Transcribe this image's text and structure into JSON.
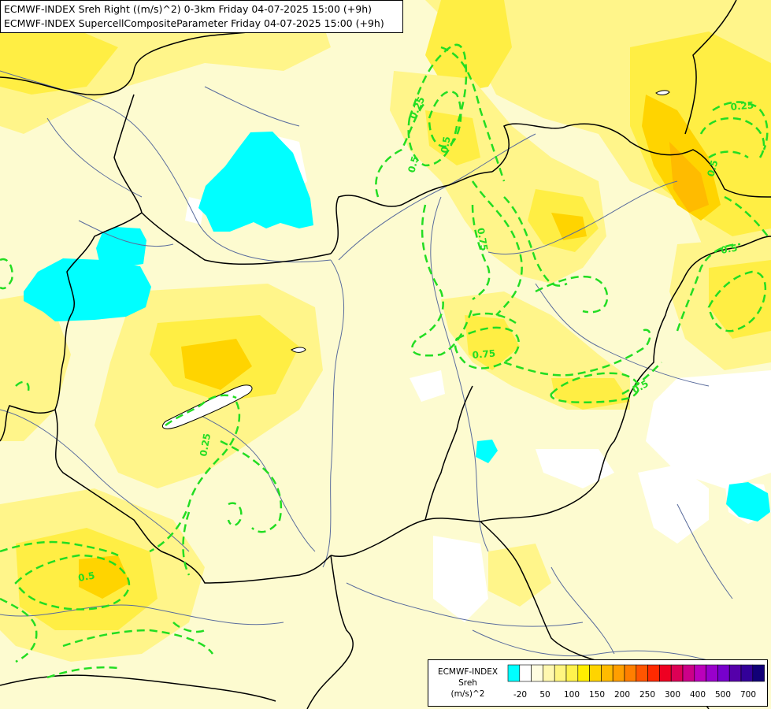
{
  "title_lines": [
    "ECMWF-INDEX Sreh Right ((m/s)^2) 0-3km Friday 04-07-2025 15:00 (+9h)",
    "ECMWF-INDEX SupercellCompositeParameter Friday 04-07-2025 15:00 (+9h)"
  ],
  "legend": {
    "model": "ECMWF-INDEX",
    "param": "Sreh",
    "unit": "(m/s)^2",
    "colors": [
      "#00ffff",
      "#ffffff",
      "#fffde0",
      "#fff8b0",
      "#fff580",
      "#fff24d",
      "#ffee00",
      "#ffd400",
      "#ffbb00",
      "#ff9f00",
      "#ff7f00",
      "#ff5500",
      "#ff2a00",
      "#ee0022",
      "#dd0055",
      "#cc0088",
      "#bb00bb",
      "#9900cc",
      "#7700cc",
      "#5500aa",
      "#330099",
      "#110077"
    ],
    "tick_labels": [
      "-20",
      "50",
      "100",
      "150",
      "200",
      "250",
      "300",
      "400",
      "500",
      "700"
    ]
  },
  "contour_labels": [
    "0.25",
    "0.5",
    "0.5",
    "0.75",
    "0.75",
    "0.25",
    "0.5",
    "0.5",
    "0.25",
    "0.5",
    "0.5"
  ],
  "map_colors": {
    "background": "#fdfbd0",
    "yellow_light": "#fff58a",
    "yellow_mid": "#ffee44",
    "orange_light": "#ffd400",
    "orange": "#ffbb00",
    "cyan": "#00ffff",
    "white": "#ffffff",
    "contour": "#22dd22",
    "border": "#000000",
    "river": "#5a6c9c"
  }
}
